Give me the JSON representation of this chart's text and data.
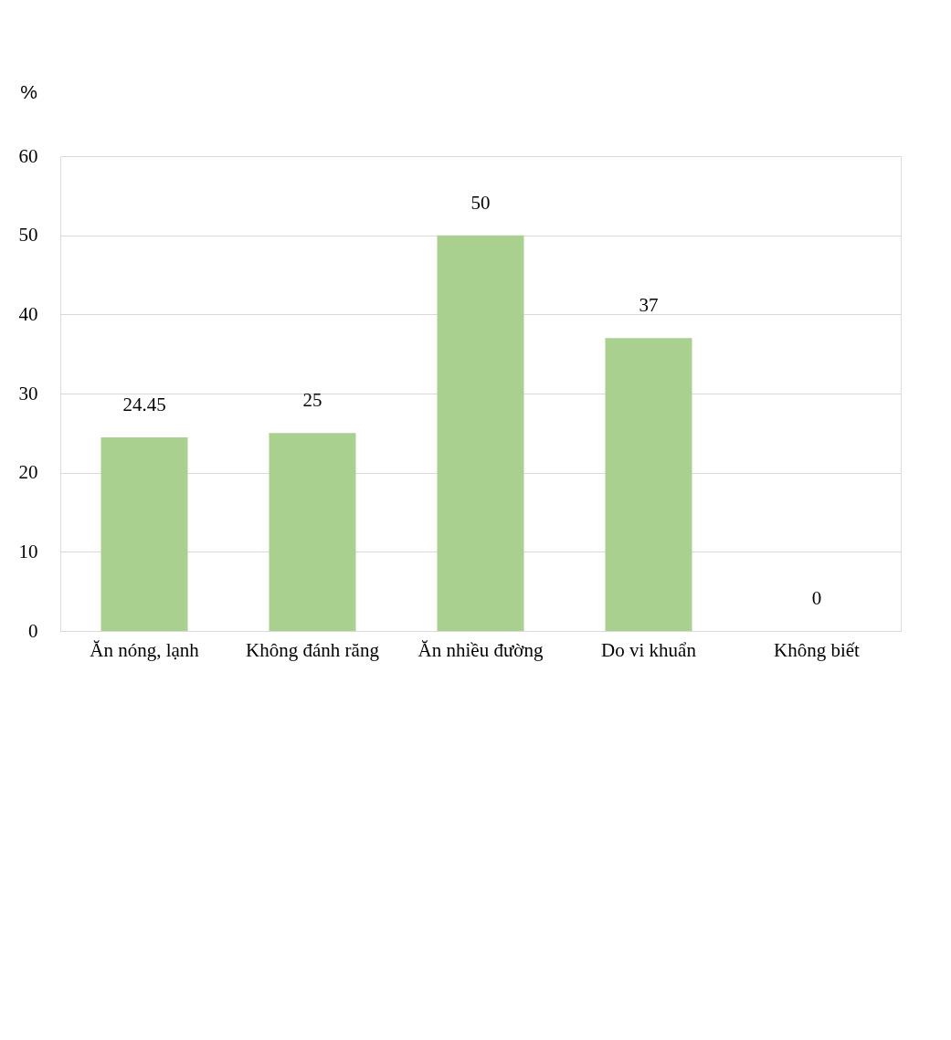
{
  "chart_data": {
    "type": "bar",
    "ylabel": "%",
    "categories": [
      "Ăn nóng, lạnh",
      "Không đánh răng",
      "Ăn nhiều đường",
      "Do vi khuẩn",
      "Không biết"
    ],
    "values": [
      24.45,
      25,
      50,
      37,
      0
    ],
    "color": "#a9d08e",
    "ylim": [
      0,
      60
    ],
    "yticks": [
      0,
      10,
      20,
      30,
      40,
      50,
      60
    ],
    "grid": "y",
    "data_labels": true
  }
}
